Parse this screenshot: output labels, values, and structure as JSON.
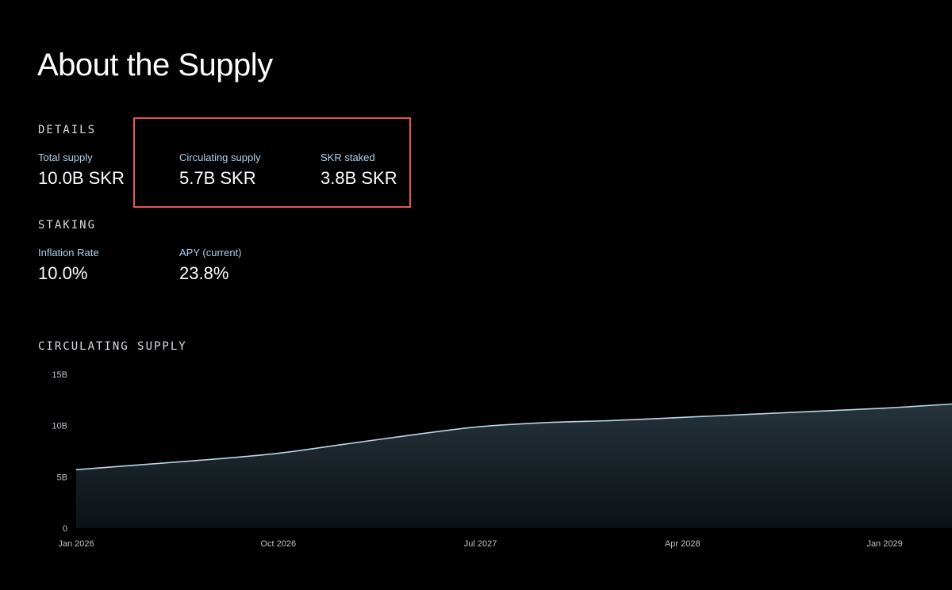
{
  "page": {
    "title": "About the Supply"
  },
  "details": {
    "heading": "DETAILS",
    "total_supply": {
      "label": "Total supply",
      "value": "10.0B SKR"
    },
    "circulating_supply": {
      "label": "Circulating supply",
      "value": "5.7B SKR"
    },
    "skr_staked": {
      "label": "SKR staked",
      "value": "3.8B SKR"
    }
  },
  "staking": {
    "heading": "STAKING",
    "inflation_rate": {
      "label": "Inflation Rate",
      "value": "10.0%"
    },
    "apy": {
      "label": "APY (current)",
      "value": "23.8%"
    }
  },
  "colors": {
    "background": "#000000",
    "label": "#a9d3ef",
    "highlight_border": "#e8555a",
    "chart_line": "#b9d8e6",
    "chart_fill_top": "#25333b"
  },
  "chart": {
    "heading": "CIRCULATING SUPPLY",
    "chart_data": {
      "type": "area",
      "x": [
        "2026-01",
        "2026-04",
        "2026-07",
        "2026-10",
        "2027-01",
        "2027-04",
        "2027-07",
        "2027-10",
        "2028-01",
        "2028-04",
        "2028-07",
        "2028-10",
        "2029-01",
        "2029-04"
      ],
      "y": [
        5.7,
        6.2,
        6.7,
        7.3,
        8.2,
        9.1,
        9.9,
        10.3,
        10.5,
        10.8,
        11.1,
        11.4,
        11.7,
        12.1
      ],
      "y_unit": "B",
      "ylim": [
        0,
        15
      ],
      "y_ticks": [
        "0",
        "5B",
        "10B",
        "15B"
      ],
      "y_tick_values": [
        0,
        5,
        10,
        15
      ],
      "x_ticks": [
        "Jan 2026",
        "Oct 2026",
        "Jul 2027",
        "Apr 2028",
        "Jan 2029"
      ],
      "x_tick_indices": [
        0,
        3,
        6,
        9,
        12
      ],
      "grid": false,
      "legend": "none"
    }
  }
}
